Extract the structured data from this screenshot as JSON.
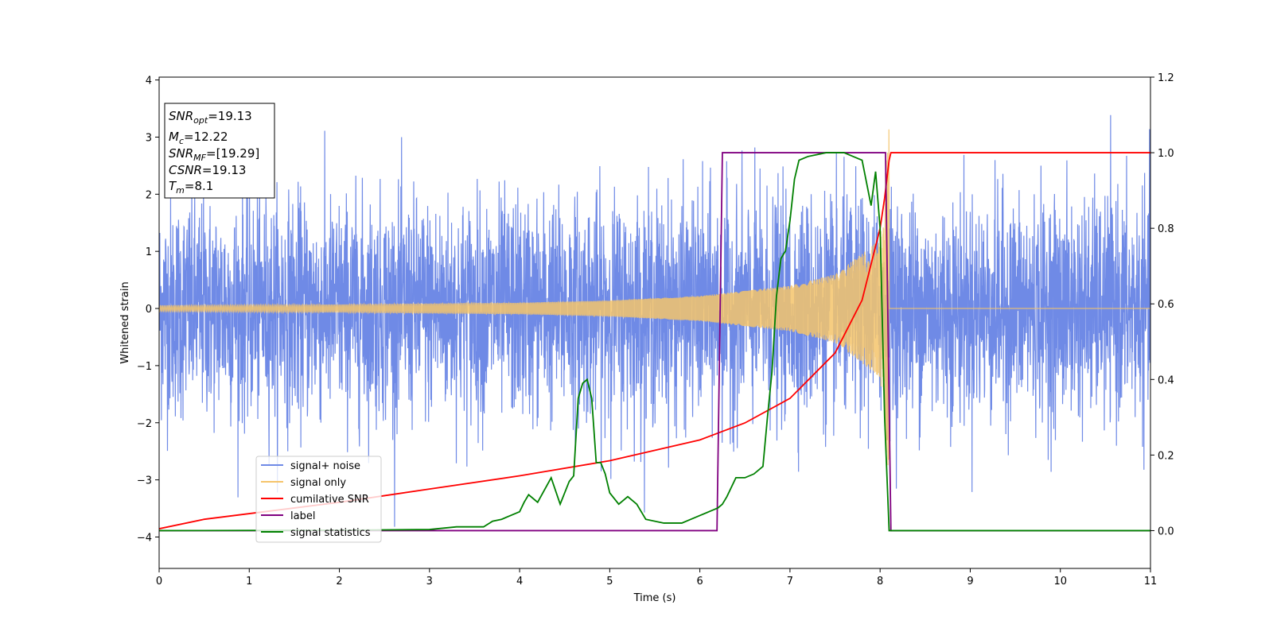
{
  "chart_data": {
    "type": "line",
    "title": "",
    "xlabel": "Time (s)",
    "ylabel": "Whitened strain",
    "y2label": "",
    "xlim": [
      0,
      11
    ],
    "ylim": [
      -4.55,
      4.05
    ],
    "y2lim": [
      -0.1,
      1.2
    ],
    "xticks": [
      "0",
      "1",
      "2",
      "3",
      "4",
      "5",
      "6",
      "7",
      "8",
      "9",
      "10",
      "11"
    ],
    "yticks": [
      "−4",
      "−3",
      "−2",
      "−1",
      "0",
      "1",
      "2",
      "3",
      "4"
    ],
    "y2ticks": [
      "0.0",
      "0.2",
      "0.4",
      "0.6",
      "0.8",
      "1.0",
      "1.2"
    ],
    "grid": false,
    "legend_position": "lower-left",
    "stats_box": {
      "snr_opt": {
        "symbol": "SNR",
        "sub": "opt",
        "value": "=19.13"
      },
      "mc": {
        "symbol": "M",
        "sub": "c",
        "value": "=12.22"
      },
      "snr_mf": {
        "symbol": "SNR",
        "sub": "MF",
        "value": "=[19.29]"
      },
      "csnr": {
        "symbol": "CSNR",
        "sub": "",
        "value": "=19.13"
      },
      "tm": {
        "symbol": "T",
        "sub": "m",
        "value": "=8.1"
      }
    },
    "series": [
      {
        "name": "signal+ noise",
        "axis": "left",
        "color": "#6f8ae6",
        "description_shape": "noise, amplitude up to about 3.6",
        "approx_range": [
          -4.15,
          3.65
        ]
      },
      {
        "name": "signal only",
        "axis": "left",
        "color": "#f5c46b",
        "merger_time": 8.1,
        "approx_peak": 3.2,
        "x": [
          0,
          2,
          4,
          5,
          6,
          7,
          7.5,
          8.0,
          8.1,
          8.12,
          11
        ],
        "envelope": [
          0.05,
          0.07,
          0.1,
          0.14,
          0.22,
          0.4,
          0.6,
          1.2,
          3.2,
          0,
          0
        ]
      },
      {
        "name": "cumilative SNR",
        "axis": "right",
        "color": "#ff0000",
        "x": [
          0,
          0.5,
          1,
          2,
          3,
          4,
          5,
          6,
          6.5,
          7,
          7.5,
          7.8,
          8.0,
          8.05,
          8.1,
          8.12,
          11
        ],
        "values": [
          0.005,
          0.03,
          0.045,
          0.075,
          0.11,
          0.145,
          0.185,
          0.24,
          0.285,
          0.35,
          0.47,
          0.61,
          0.8,
          0.88,
          0.98,
          1.0,
          1.0
        ]
      },
      {
        "name": "label",
        "axis": "right",
        "color": "#800080",
        "x": [
          0,
          6.19,
          6.25,
          8.06,
          8.12,
          11
        ],
        "values": [
          0,
          0,
          1,
          1,
          0,
          0
        ]
      },
      {
        "name": "signal statistics",
        "axis": "right",
        "color": "#008000",
        "x": [
          0,
          2,
          3,
          3.3,
          3.6,
          3.7,
          3.8,
          3.9,
          4.0,
          4.05,
          4.1,
          4.2,
          4.35,
          4.45,
          4.55,
          4.6,
          4.65,
          4.7,
          4.75,
          4.8,
          4.85,
          4.9,
          4.95,
          5.0,
          5.1,
          5.2,
          5.3,
          5.4,
          5.6,
          5.8,
          5.9,
          6.0,
          6.1,
          6.2,
          6.25,
          6.3,
          6.4,
          6.5,
          6.6,
          6.7,
          6.75,
          6.8,
          6.85,
          6.9,
          6.95,
          7.0,
          7.05,
          7.1,
          7.2,
          7.3,
          7.4,
          7.5,
          7.6,
          7.7,
          7.8,
          7.85,
          7.9,
          7.95,
          8.0,
          8.05,
          8.1,
          8.13,
          11
        ],
        "values": [
          0,
          0.001,
          0.003,
          0.01,
          0.01,
          0.025,
          0.03,
          0.04,
          0.05,
          0.075,
          0.095,
          0.075,
          0.14,
          0.07,
          0.13,
          0.145,
          0.35,
          0.39,
          0.4,
          0.35,
          0.18,
          0.18,
          0.15,
          0.1,
          0.07,
          0.09,
          0.07,
          0.03,
          0.02,
          0.02,
          0.03,
          0.04,
          0.05,
          0.06,
          0.07,
          0.09,
          0.14,
          0.14,
          0.15,
          0.17,
          0.3,
          0.42,
          0.62,
          0.72,
          0.74,
          0.82,
          0.93,
          0.98,
          0.99,
          0.995,
          1.0,
          1.0,
          1.0,
          0.99,
          0.98,
          0.92,
          0.86,
          0.95,
          0.8,
          0.3,
          0.0,
          0.0,
          0.0
        ]
      }
    ]
  }
}
